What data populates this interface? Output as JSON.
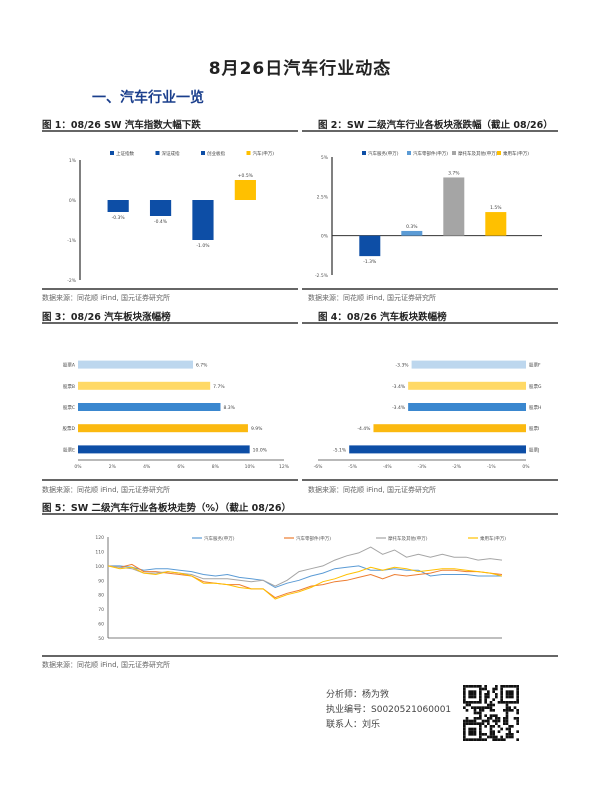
{
  "title": "8月26日汽车行业动态",
  "section": "一、汽车行业一览",
  "source": "数据来源：同花顺 iFind, 国元证券研究所",
  "fig1": {
    "title": "图 1：08/26   SW 汽车指数大幅下跌",
    "chart_data": {
      "type": "bar",
      "categories": [
        "上证指数",
        "深证成指",
        "创业板指",
        "汽车(申万)"
      ],
      "values": [
        -0.3,
        -0.4,
        -1.0,
        0.5
      ],
      "labels": [
        "-0.3%",
        "-0.4%",
        "-1.0%",
        "+0.5%"
      ],
      "yticks": [
        "1%",
        "0%",
        "-1%",
        "-2%"
      ],
      "ylim": [
        -2,
        1
      ],
      "colors": [
        "#0d4ea6",
        "#0d4ea6",
        "#0d4ea6",
        "#ffc000"
      ]
    }
  },
  "fig2": {
    "title": "图 2：SW 二级汽车行业各板块涨跌幅（截止 08/26）",
    "chart_data": {
      "type": "bar",
      "categories": [
        "汽车服务(申万)",
        "汽车零部件(申万)",
        "摩托车及其他(申万)",
        "乘用车(申万)"
      ],
      "values": [
        -1.3,
        0.3,
        3.7,
        1.5
      ],
      "labels": [
        "-1.3%",
        "0.3%",
        "3.7%",
        "1.5%"
      ],
      "yticks": [
        "5%",
        "2.5%",
        "0%",
        "-2.5%"
      ],
      "ylim": [
        -2.5,
        5
      ],
      "colors": [
        "#0d4ea6",
        "#5b9bd5",
        "#a5a5a5",
        "#ffc000"
      ]
    }
  },
  "fig3": {
    "title": "图 3：08/26    汽车板块涨幅榜",
    "chart_data": {
      "type": "bar",
      "orientation": "horizontal",
      "categories": [
        "股票A",
        "股票B",
        "股票C",
        "股票D",
        "股票E"
      ],
      "values": [
        6.7,
        7.7,
        8.3,
        9.9,
        10.0
      ],
      "labels": [
        "6.7%",
        "7.7%",
        "8.3%",
        "9.9%",
        "10.0%"
      ],
      "xticks": [
        "0%",
        "2%",
        "4%",
        "6%",
        "8%",
        "10%",
        "12%"
      ],
      "xlim": [
        0,
        12
      ],
      "colors": [
        "#bdd7ee",
        "#ffd966",
        "#3a87cf",
        "#fbb910",
        "#0d4ea6"
      ]
    }
  },
  "fig4": {
    "title": "图 4：08/26    汽车板块跌幅榜",
    "chart_data": {
      "type": "bar",
      "orientation": "horizontal",
      "categories": [
        "股票F",
        "股票G",
        "股票H",
        "股票I",
        "股票J"
      ],
      "values": [
        -3.3,
        -3.4,
        -3.4,
        -4.4,
        -5.1
      ],
      "labels": [
        "-3.3%",
        "-3.4%",
        "-3.4%",
        "-4.4%",
        "-5.1%"
      ],
      "xticks": [
        "-6%",
        "-5%",
        "-4%",
        "-3%",
        "-2%",
        "-1%",
        "0%"
      ],
      "xlim": [
        -6,
        0
      ],
      "colors": [
        "#bdd7ee",
        "#ffd966",
        "#3a87cf",
        "#fbb910",
        "#0d4ea6"
      ]
    }
  },
  "fig5": {
    "title": "图 5：SW 二级汽车行业各板块走势（%）（截止 08/26）",
    "chart_data": {
      "type": "line",
      "ylim": [
        50,
        120
      ],
      "yticks": [
        "120",
        "110",
        "100",
        "90",
        "80",
        "70",
        "60",
        "50"
      ],
      "x_count": 34,
      "series": [
        {
          "name": "汽车服务(申万)",
          "color": "#5b9bd5",
          "values": [
            100,
            100,
            99,
            97,
            98,
            98,
            97,
            96,
            94,
            93,
            94,
            92,
            91,
            90,
            85,
            88,
            90,
            93,
            95,
            98,
            99,
            100,
            97,
            97,
            98,
            97,
            97,
            93,
            94,
            94,
            94,
            93,
            93,
            93
          ]
        },
        {
          "name": "汽车零部件(申万)",
          "color": "#ed7d31",
          "values": [
            100,
            99,
            101,
            96,
            96,
            95,
            94,
            93,
            89,
            88,
            87,
            87,
            84,
            84,
            78,
            81,
            83,
            86,
            87,
            89,
            90,
            92,
            94,
            91,
            94,
            93,
            94,
            95,
            97,
            97,
            96,
            96,
            95,
            94
          ]
        },
        {
          "name": "摩托车及其他(申万)",
          "color": "#a5a5a5",
          "values": [
            100,
            99,
            98,
            95,
            95,
            96,
            95,
            94,
            91,
            91,
            91,
            90,
            89,
            90,
            86,
            90,
            96,
            98,
            100,
            104,
            107,
            109,
            113,
            108,
            111,
            106,
            108,
            106,
            108,
            106,
            106,
            104,
            105,
            104
          ]
        },
        {
          "name": "乘用车(申万)",
          "color": "#ffc000",
          "values": [
            100,
            98,
            99,
            95,
            94,
            96,
            95,
            93,
            88,
            88,
            87,
            85,
            84,
            84,
            77,
            80,
            82,
            85,
            89,
            91,
            94,
            96,
            99,
            97,
            99,
            98,
            96,
            97,
            98,
            98,
            97,
            96,
            95,
            93
          ]
        }
      ]
    }
  },
  "analyst": {
    "name_label": "分析师：杨为敩",
    "cert_label": "执业编号：S0020521060001",
    "contact_label": "联系人：刘乐"
  }
}
